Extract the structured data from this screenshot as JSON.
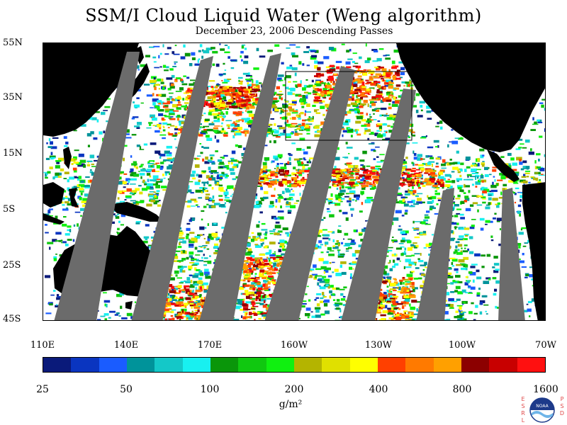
{
  "title": "SSM/I Cloud Liquid Water (Weng algorithm)",
  "subtitle": "December 23, 2006  Descending Passes",
  "lat_labels": [
    "55N",
    "35N",
    "15N",
    "5S",
    "25S",
    "45S"
  ],
  "lon_labels": [
    "110E",
    "140E",
    "170E",
    "160W",
    "130W",
    "100W",
    "70W"
  ],
  "colorbar": {
    "labels": [
      "25",
      "50",
      "100",
      "200",
      "400",
      "800",
      "1600"
    ],
    "colors": [
      "#0a1a7a",
      "#0a35c0",
      "#1a5cff",
      "#00939a",
      "#14c8c8",
      "#18f0f0",
      "#0a960a",
      "#10c810",
      "#10f010",
      "#b4b400",
      "#e0e000",
      "#ffff00",
      "#ff4000",
      "#ff7a00",
      "#ffa000",
      "#8c0000",
      "#c80000",
      "#ff1010"
    ],
    "unit": "g/m²"
  },
  "logo": {
    "left_letters": "ESRL",
    "right_letters": "PSD",
    "emblem": "NOAA"
  }
}
